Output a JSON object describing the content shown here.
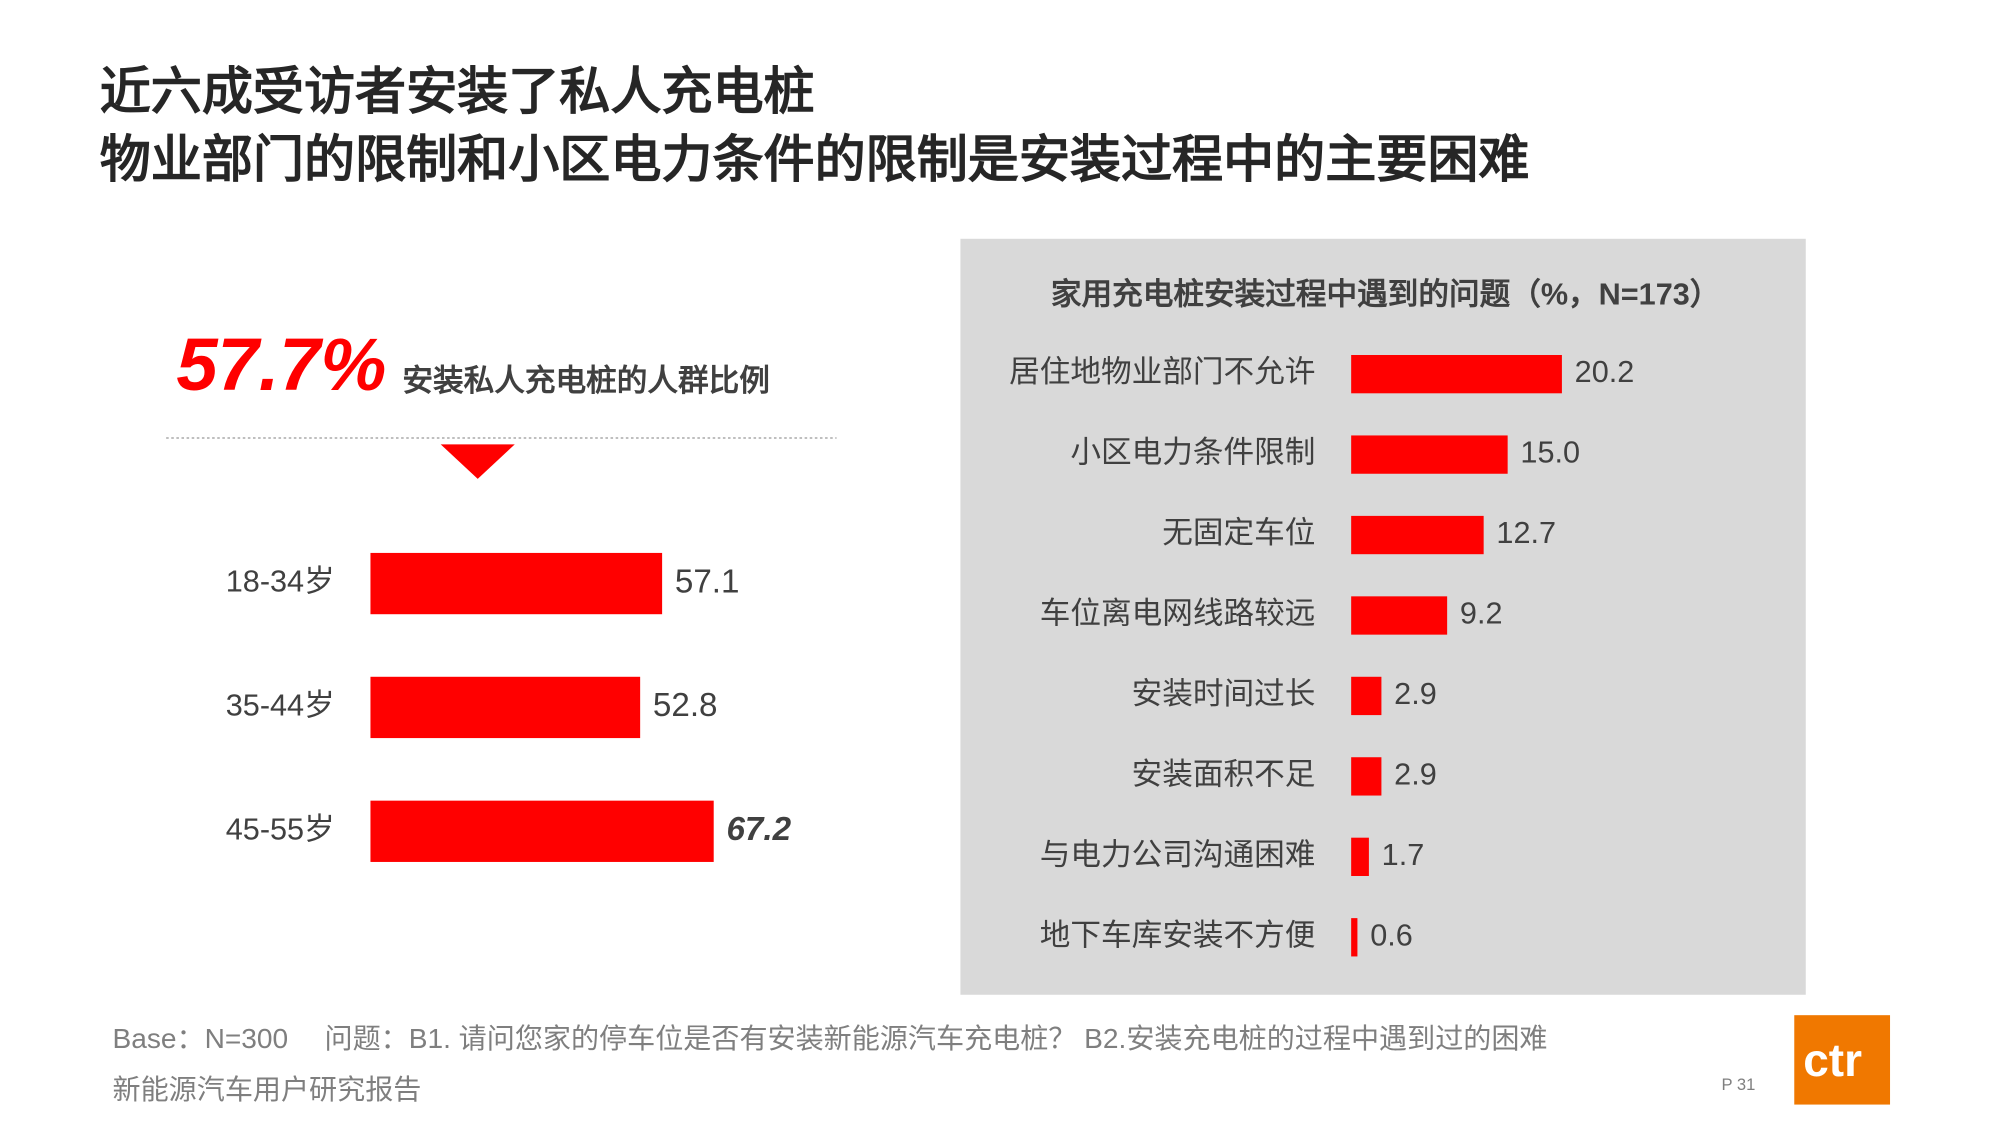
{
  "title_lines": [
    "近六成受访者安装了私人充电桩",
    "物业部门的限制和小区电力条件的限制是安装过程中的主要困难"
  ],
  "highlight": {
    "value": "57.7%",
    "label": "安装私人充电桩的人群比例"
  },
  "chart_data": [
    {
      "type": "bar",
      "orientation": "horizontal",
      "color": "#ff0000",
      "categories": [
        "18-34岁",
        "35-44岁",
        "45-55岁"
      ],
      "values": [
        57.1,
        52.8,
        67.2
      ]
    },
    {
      "type": "bar",
      "orientation": "horizontal",
      "color": "#ff0000",
      "title": "家用充电桩安装过程中遇到的问题（%，N=173）",
      "categories": [
        "居住地物业部门不允许",
        "小区电力条件限制",
        "无固定车位",
        "车位离电网线路较远",
        "安装时间过长",
        "安装面积不足",
        "与电力公司沟通困难",
        "地下车库安装不方便"
      ],
      "values": [
        20.2,
        15.0,
        12.7,
        9.2,
        2.9,
        2.9,
        1.7,
        0.6
      ],
      "value_labels": [
        "20.2",
        "15.0",
        "12.7",
        "9.2",
        "2.9",
        "2.9",
        "1.7",
        "0.6"
      ]
    }
  ],
  "footer": {
    "base": "Base：N=300",
    "question": "问题：B1. 请问您家的停车位是否有安装新能源汽车充电桩？  B2.安装充电桩的过程中遇到过的困难",
    "source": "新能源汽车用户研究报告",
    "page": "P 31",
    "logo": "ctr"
  }
}
